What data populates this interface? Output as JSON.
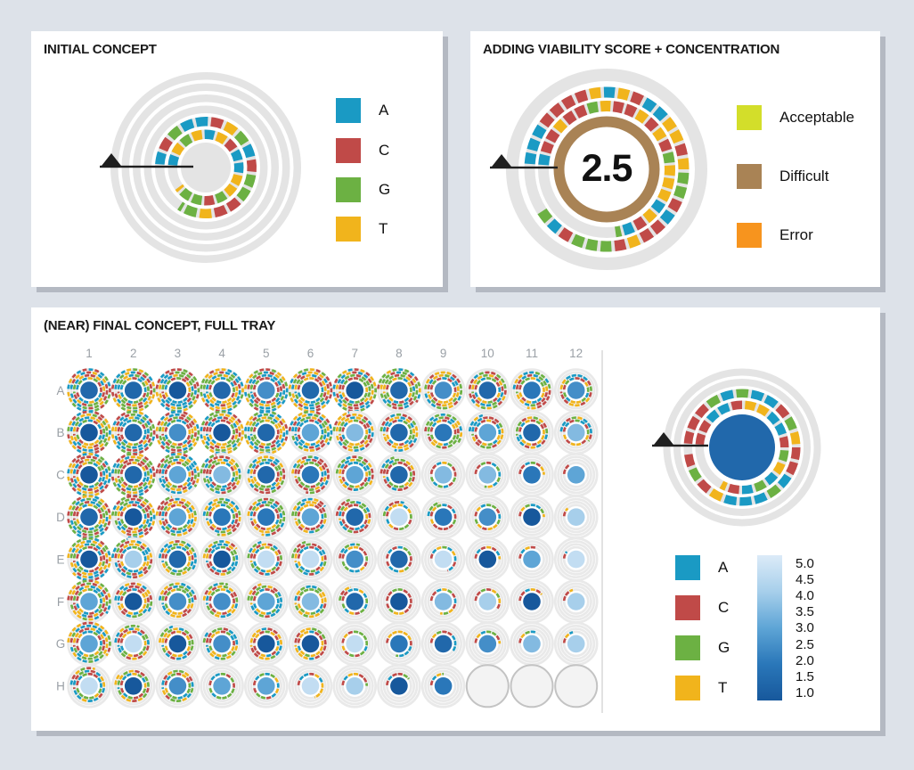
{
  "colors": {
    "background": "#dde2e9",
    "panel": "#ffffff",
    "panel_shadow": "#b4b9c2",
    "title": "#1a1a1a",
    "ring_track": "#e4e4e4",
    "well_track": "#e9e9e9",
    "grid_label": "#9aa0a6",
    "divider": "#d8d8d8",
    "arrow": "#1f1f1f",
    "empty_well_fill": "#f3f3f3",
    "empty_well_border": "#c3c3c3",
    "bases": {
      "A": "#1a9ac4",
      "C": "#c04a48",
      "G": "#6cb143",
      "T": "#f1b41c"
    },
    "viability": {
      "acceptable": "#d3de2a",
      "difficult": "#a98355",
      "error": "#f7941e"
    },
    "concentration_stops": [
      {
        "value": 1.0,
        "color": "#17589c"
      },
      {
        "value": 2.0,
        "color": "#2a77b9"
      },
      {
        "value": 3.0,
        "color": "#5ea5d6"
      },
      {
        "value": 4.0,
        "color": "#a7cfeb"
      },
      {
        "value": 5.0,
        "color": "#dcebf8"
      }
    ]
  },
  "panel_initial": {
    "title": "INITIAL CONCEPT",
    "legend": [
      {
        "label": "A"
      },
      {
        "label": "C"
      },
      {
        "label": "G"
      },
      {
        "label": "T"
      }
    ]
  },
  "panel_viability": {
    "title": "ADDING VIABILITY SCORE + CONCENTRATION",
    "score": "2.5",
    "legend": [
      {
        "label": "Acceptable"
      },
      {
        "label": "Difficult"
      },
      {
        "label": "Error"
      }
    ]
  },
  "panel_tray": {
    "title": "(NEAR) FINAL CONCEPT, FULL TRAY",
    "columns": [
      "1",
      "2",
      "3",
      "4",
      "5",
      "6",
      "7",
      "8",
      "9",
      "10",
      "11",
      "12"
    ],
    "rows": [
      "A",
      "B",
      "C",
      "D",
      "E",
      "F",
      "G",
      "H"
    ],
    "legend": [
      {
        "label": "A"
      },
      {
        "label": "C"
      },
      {
        "label": "G"
      },
      {
        "label": "T"
      }
    ],
    "scale_ticks": [
      "5.0",
      "4.5",
      "4.0",
      "3.5",
      "3.0",
      "2.5",
      "2.0",
      "1.5",
      "1.0"
    ]
  },
  "chart_data": [
    {
      "type": "radial",
      "title": "INITIAL CONCEPT",
      "description": "DNA sequence spiral: two colored base rings on gray concentric tracks, empty gray center",
      "legend": [
        "A",
        "C",
        "G",
        "T"
      ],
      "rings_filled": 2,
      "ring_coverage_deg": [
        320,
        300
      ]
    },
    {
      "type": "radial",
      "title": "ADDING VIABILITY SCORE + CONCENTRATION",
      "viability_score": 2.5,
      "viability_level": "Difficult",
      "legend": [
        "Acceptable",
        "Difficult",
        "Error"
      ],
      "ring_coverage_deg": [
        258,
        324
      ]
    },
    {
      "type": "heatmap",
      "title": "(NEAR) FINAL CONCEPT, FULL TRAY",
      "rows": [
        "A",
        "B",
        "C",
        "D",
        "E",
        "F",
        "G",
        "H"
      ],
      "columns": [
        "1",
        "2",
        "3",
        "4",
        "5",
        "6",
        "7",
        "8",
        "9",
        "10",
        "11",
        "12"
      ],
      "concentration_scale": {
        "min": 1.0,
        "max": 5.0,
        "ticks": [
          5.0,
          4.5,
          4.0,
          3.5,
          3.0,
          2.5,
          2.0,
          1.5,
          1.0
        ]
      },
      "empty_wells": [
        "H10",
        "H11",
        "H12"
      ],
      "detail_well_concentration": 1.5,
      "concentration": [
        [
          1.5,
          1.5,
          1.0,
          1.5,
          2.5,
          1.5,
          1.0,
          1.5,
          2.5,
          1.5,
          2.0,
          2.5
        ],
        [
          1.0,
          1.5,
          2.5,
          1.0,
          1.5,
          3.0,
          3.5,
          1.5,
          2.0,
          3.0,
          1.5,
          3.5
        ],
        [
          1.0,
          1.5,
          3.0,
          3.5,
          1.5,
          2.0,
          3.0,
          1.5,
          3.5,
          3.5,
          2.0,
          3.0
        ],
        [
          1.5,
          1.0,
          3.0,
          2.0,
          2.0,
          3.0,
          1.5,
          4.5,
          2.0,
          2.5,
          1.0,
          4.0
        ],
        [
          1.0,
          4.0,
          1.5,
          1.0,
          4.5,
          4.5,
          2.5,
          1.5,
          4.5,
          1.0,
          3.0,
          4.5
        ],
        [
          3.0,
          1.0,
          2.5,
          2.5,
          3.0,
          3.5,
          1.5,
          1.0,
          3.5,
          4.0,
          1.0,
          4.0
        ],
        [
          3.0,
          4.5,
          1.0,
          2.5,
          1.0,
          1.0,
          4.5,
          2.0,
          1.5,
          2.5,
          3.5,
          4.0
        ],
        [
          4.5,
          1.0,
          2.5,
          3.0,
          3.0,
          4.5,
          4.0,
          1.0,
          2.0,
          null,
          null,
          null
        ]
      ],
      "sequence_rings_filled": [
        [
          4,
          4,
          4,
          4,
          4,
          4,
          4,
          3.6,
          3.0,
          3.0,
          2.8,
          2.0
        ],
        [
          4,
          4,
          4,
          4,
          4,
          3.6,
          3.2,
          2.8,
          2.6,
          2.2,
          2.0,
          1.6
        ],
        [
          4,
          4,
          3.6,
          3.2,
          3.0,
          2.8,
          2.6,
          2.2,
          1.0,
          0.8,
          0.5,
          0.15
        ],
        [
          4,
          3.8,
          3.2,
          2.8,
          2.8,
          2.4,
          2.2,
          1.3,
          1.2,
          1.0,
          0.5,
          0.12
        ],
        [
          3.9,
          3.2,
          2.6,
          2.4,
          2.2,
          2.2,
          1.3,
          1.0,
          0.7,
          0.5,
          0.3,
          0.1
        ],
        [
          3.6,
          2.6,
          2.5,
          2.3,
          2.2,
          2.0,
          1.2,
          1.0,
          0.8,
          0.6,
          0.4,
          0.2
        ],
        [
          3.6,
          2.3,
          2.2,
          2.1,
          2.0,
          2.0,
          1.0,
          0.8,
          0.6,
          0.5,
          0.3,
          0.2
        ],
        [
          2.3,
          2.1,
          2.0,
          1.0,
          1.0,
          0.7,
          0.5,
          0.4,
          0.25,
          null,
          null,
          null
        ]
      ]
    }
  ]
}
